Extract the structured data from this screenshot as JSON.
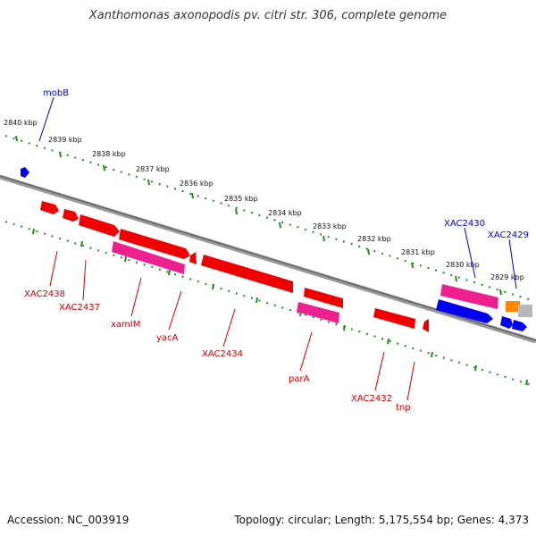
{
  "title": "Xanthomonas axonopodis pv. citri str. 306, complete genome",
  "footer": {
    "accession": "Accession: NC_003919",
    "topology": "Topology: circular; Length: 5,175,554 bp; Genes: 4,373"
  },
  "colors": {
    "backbone": "#808080",
    "tick": "#228b22",
    "gene_red": "#ee0000",
    "gene_pink": "#ee2090",
    "gene_blue": "#0000ee",
    "gene_orange": "#ff8800",
    "gene_gray": "#b8b8b8",
    "label_red": "#cc0000",
    "label_blue": "#0000cc"
  },
  "scale_labels": [
    "2840 kbp",
    "2839 kbp",
    "2838 kbp",
    "2837 kbp",
    "2836 kbp",
    "2835 kbp",
    "2834 kbp",
    "2833 kbp",
    "2832 kbp",
    "2831 kbp",
    "2830 kbp",
    "2829 kbp"
  ],
  "gene_labels": {
    "mobB": "mobB",
    "XAC2438": "XAC2438",
    "XAC2437": "XAC2437",
    "xamIM": "xamIM",
    "yacA": "yacA",
    "XAC2434": "XAC2434",
    "parA": "parA",
    "XAC2432": "XAC2432",
    "tnp": "tnp",
    "XAC2430": "XAC2430",
    "XAC2429": "XAC2429"
  }
}
